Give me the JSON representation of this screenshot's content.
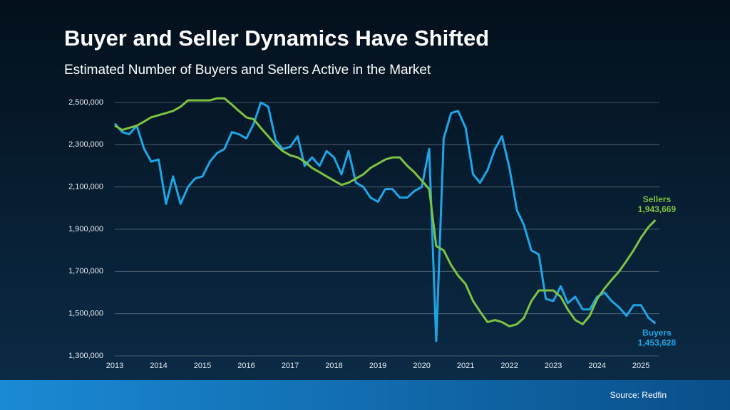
{
  "chart_data": {
    "type": "line",
    "title": "Buyer and Seller Dynamics Have Shifted",
    "subtitle": "Estimated Number of Buyers and Sellers Active in the Market",
    "source": "Source: Redfin",
    "x": [
      2013,
      2013.17,
      2013.33,
      2013.5,
      2013.67,
      2013.83,
      2014,
      2014.17,
      2014.33,
      2014.5,
      2014.67,
      2014.83,
      2015,
      2015.17,
      2015.33,
      2015.5,
      2015.67,
      2015.83,
      2016,
      2016.17,
      2016.33,
      2016.5,
      2016.67,
      2016.83,
      2017,
      2017.17,
      2017.33,
      2017.5,
      2017.67,
      2017.83,
      2018,
      2018.17,
      2018.33,
      2018.5,
      2018.67,
      2018.83,
      2019,
      2019.17,
      2019.33,
      2019.5,
      2019.67,
      2019.83,
      2020,
      2020.17,
      2020.33,
      2020.5,
      2020.67,
      2020.83,
      2021,
      2021.17,
      2021.33,
      2021.5,
      2021.67,
      2021.83,
      2022,
      2022.17,
      2022.33,
      2022.5,
      2022.67,
      2022.83,
      2023,
      2023.17,
      2023.33,
      2023.5,
      2023.67,
      2023.83,
      2024,
      2024.17,
      2024.33,
      2024.5,
      2024.67,
      2024.83,
      2025,
      2025.17,
      2025.33
    ],
    "series": [
      {
        "name": "Buyers",
        "color": "#1ea5e6",
        "values": [
          2400000,
          2360000,
          2350000,
          2390000,
          2280000,
          2220000,
          2230000,
          2020000,
          2150000,
          2020000,
          2100000,
          2140000,
          2150000,
          2220000,
          2260000,
          2280000,
          2360000,
          2350000,
          2330000,
          2400000,
          2500000,
          2480000,
          2320000,
          2280000,
          2290000,
          2340000,
          2200000,
          2240000,
          2200000,
          2270000,
          2240000,
          2160000,
          2270000,
          2120000,
          2100000,
          2050000,
          2030000,
          2090000,
          2090000,
          2050000,
          2050000,
          2080000,
          2100000,
          2280000,
          1370000,
          2330000,
          2450000,
          2460000,
          2380000,
          2160000,
          2120000,
          2180000,
          2280000,
          2340000,
          2190000,
          1990000,
          1920000,
          1800000,
          1780000,
          1570000,
          1560000,
          1630000,
          1550000,
          1580000,
          1520000,
          1520000,
          1580000,
          1600000,
          1560000,
          1530000,
          1490000,
          1540000,
          1540000,
          1480000,
          1453628
        ],
        "value_labels": [
          null,
          null,
          null,
          null,
          null,
          null,
          null,
          null,
          null,
          null,
          null,
          null,
          null,
          null,
          null,
          null,
          null,
          null,
          null,
          null,
          null,
          null,
          null,
          null,
          null,
          null,
          null,
          null,
          null,
          null,
          null,
          null,
          null,
          null,
          null,
          null,
          null,
          null,
          null,
          null,
          null,
          null,
          null,
          null,
          null,
          null,
          null,
          null,
          null,
          null,
          null,
          null,
          null,
          null,
          null,
          null,
          null,
          null,
          null,
          null,
          null,
          null,
          null,
          null,
          null,
          null,
          null,
          null,
          null,
          null,
          null,
          null,
          null,
          null,
          "1,453,628"
        ]
      },
      {
        "name": "Sellers",
        "color": "#7dc242",
        "values": [
          2390000,
          2370000,
          2380000,
          2390000,
          2410000,
          2430000,
          2440000,
          2450000,
          2460000,
          2480000,
          2510000,
          2510000,
          2510000,
          2510000,
          2520000,
          2520000,
          2490000,
          2460000,
          2430000,
          2420000,
          2380000,
          2340000,
          2300000,
          2270000,
          2250000,
          2240000,
          2220000,
          2190000,
          2170000,
          2150000,
          2130000,
          2110000,
          2120000,
          2140000,
          2160000,
          2190000,
          2210000,
          2230000,
          2240000,
          2240000,
          2200000,
          2170000,
          2130000,
          2090000,
          1820000,
          1800000,
          1730000,
          1680000,
          1640000,
          1560000,
          1510000,
          1460000,
          1470000,
          1460000,
          1440000,
          1450000,
          1480000,
          1560000,
          1610000,
          1610000,
          1610000,
          1580000,
          1520000,
          1470000,
          1450000,
          1490000,
          1570000,
          1620000,
          1660000,
          1700000,
          1750000,
          1800000,
          1860000,
          1910000,
          1943669
        ],
        "value_labels": [
          null,
          null,
          null,
          null,
          null,
          null,
          null,
          null,
          null,
          null,
          null,
          null,
          null,
          null,
          null,
          null,
          null,
          null,
          null,
          null,
          null,
          null,
          null,
          null,
          null,
          null,
          null,
          null,
          null,
          null,
          null,
          null,
          null,
          null,
          null,
          null,
          null,
          null,
          null,
          null,
          null,
          null,
          null,
          null,
          null,
          null,
          null,
          null,
          null,
          null,
          null,
          null,
          null,
          null,
          null,
          null,
          null,
          null,
          null,
          null,
          null,
          null,
          null,
          null,
          null,
          null,
          null,
          null,
          null,
          null,
          null,
          null,
          null,
          null,
          "1,943,669"
        ]
      }
    ],
    "xlim": [
      2013,
      2025.42
    ],
    "xticks": [
      2013,
      2014,
      2015,
      2016,
      2017,
      2018,
      2019,
      2020,
      2021,
      2022,
      2023,
      2024,
      2025
    ],
    "ylim": [
      1300000,
      2500000
    ],
    "yticks": [
      {
        "value": 1300000,
        "label": "1,300,000"
      },
      {
        "value": 1500000,
        "label": "1,500,000"
      },
      {
        "value": 1700000,
        "label": "1,700,000"
      },
      {
        "value": 1900000,
        "label": "1,900,000"
      },
      {
        "value": 2100000,
        "label": "2,100,000"
      },
      {
        "value": 2300000,
        "label": "2,300,000"
      },
      {
        "value": 2500000,
        "label": "2,500,000"
      }
    ],
    "grid": true
  }
}
